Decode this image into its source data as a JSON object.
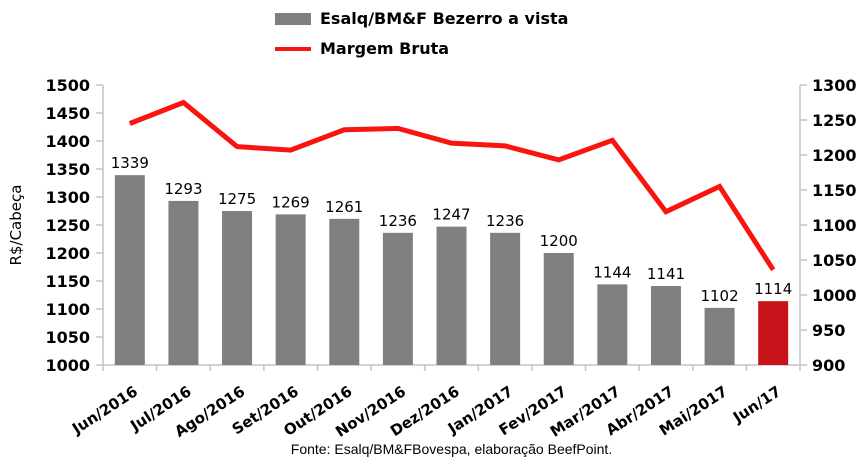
{
  "footer": {
    "source_note": "Fonte: Esalq/BM&FBovespa, elaboração BeefPoint."
  },
  "chart_data": {
    "type": "combo-bar-line",
    "title": "",
    "categories": [
      "Jun/2016",
      "Jul/2016",
      "Ago/2016",
      "Set/2016",
      "Out/2016",
      "Nov/2016",
      "Dez/2016",
      "Jan/2017",
      "Fev/2017",
      "Mar/2017",
      "Abr/2017",
      "Mai/2017",
      "Jun/17"
    ],
    "series": [
      {
        "name": "Esalq/BM&F Bezerro a vista",
        "type": "bar",
        "axis": "left",
        "values": [
          1339,
          1293,
          1275,
          1269,
          1261,
          1236,
          1247,
          1236,
          1200,
          1144,
          1141,
          1102,
          1114
        ],
        "color": "#7F7F7F",
        "highlight_last": true,
        "highlight_color": "#C8131A",
        "data_labels": true
      },
      {
        "name": "Margem Bruta",
        "type": "line",
        "axis": "right",
        "values": [
          1245,
          1275,
          1212,
          1207,
          1236,
          1238,
          1217,
          1213,
          1193,
          1221,
          1119,
          1155,
          1036
        ],
        "color": "#FA1410",
        "data_labels": false
      }
    ],
    "left_axis": {
      "label": "R$/Cabeça",
      "min": 1000,
      "max": 1500,
      "step": 50,
      "ticks": [
        1500,
        1450,
        1400,
        1350,
        1300,
        1250,
        1200,
        1150,
        1100,
        1050,
        1000
      ]
    },
    "right_axis": {
      "label": "",
      "min": 900,
      "max": 1300,
      "step": 50,
      "ticks": [
        1300,
        1250,
        1200,
        1150,
        1100,
        1050,
        1000,
        950,
        900
      ]
    },
    "grid": false,
    "legend_position": "top-center",
    "x_label_rotation_deg": -33
  }
}
